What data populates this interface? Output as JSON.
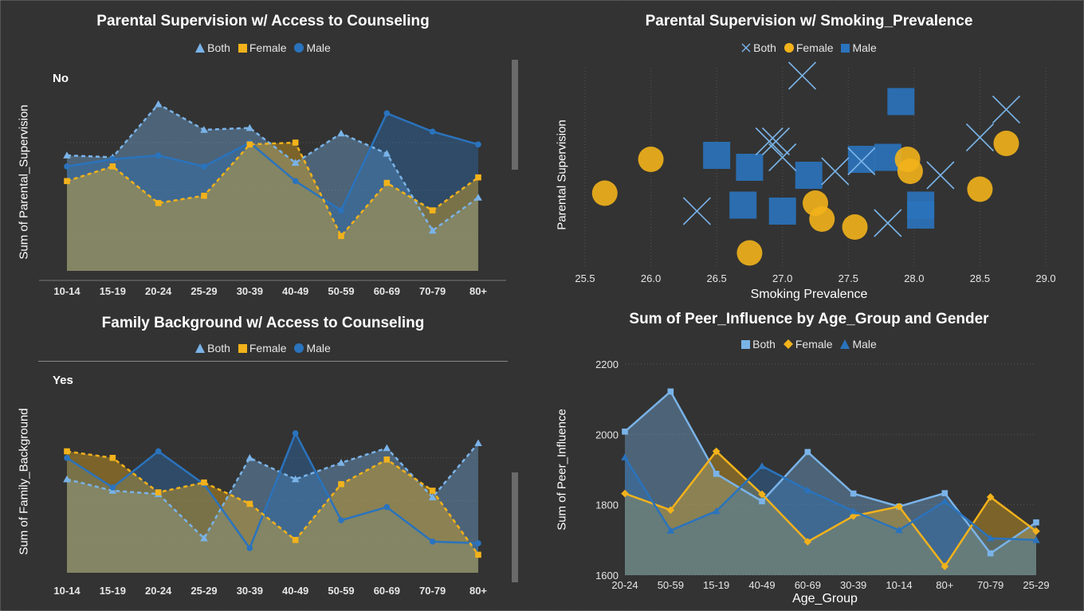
{
  "colors": {
    "both": "#7ab3e8",
    "female": "#f2b21b",
    "male": "#2a73bd",
    "bg": "#333333",
    "grid": "#555555"
  },
  "legends": {
    "both": "Both",
    "female": "Female",
    "male": "Male"
  },
  "chart_data": [
    {
      "id": "tl",
      "type": "area",
      "title": "Parental Supervision w/ Access to Counseling",
      "subtitle": "No",
      "ylabel": "Sum of Parental_Supervision",
      "xlabel": "",
      "categories": [
        "10-14",
        "15-19",
        "20-24",
        "25-29",
        "30-39",
        "40-49",
        "50-59",
        "60-69",
        "70-79",
        "80+"
      ],
      "ylim": [
        0,
        100
      ],
      "series": [
        {
          "name": "Both",
          "values": [
            63,
            62,
            91,
            77,
            78,
            59,
            75,
            64,
            22,
            40
          ]
        },
        {
          "name": "Female",
          "values": [
            49,
            57,
            37,
            41,
            69,
            70,
            19,
            48,
            33,
            51
          ]
        },
        {
          "name": "Male",
          "values": [
            57,
            61,
            63,
            57,
            70,
            49,
            33,
            86,
            76,
            69
          ]
        }
      ]
    },
    {
      "id": "bl",
      "type": "area",
      "title": "Family Background w/ Access to Counseling",
      "subtitle": "Yes",
      "ylabel": "Sum of Family_Background",
      "xlabel": "",
      "categories": [
        "10-14",
        "15-19",
        "20-24",
        "25-29",
        "30-39",
        "40-49",
        "50-59",
        "60-69",
        "70-79",
        "80+"
      ],
      "ylim": [
        0,
        100
      ],
      "series": [
        {
          "name": "Both",
          "values": [
            57,
            50,
            48,
            21,
            70,
            57,
            67,
            76,
            46,
            79
          ]
        },
        {
          "name": "Female",
          "values": [
            74,
            70,
            49,
            55,
            42,
            20,
            54,
            69,
            50,
            11
          ]
        },
        {
          "name": "Male",
          "values": [
            70,
            52,
            74,
            54,
            15,
            85,
            32,
            40,
            19,
            18
          ]
        }
      ]
    },
    {
      "id": "tr",
      "type": "scatter",
      "title": "Parental Supervision w/ Smoking_Prevalence",
      "xlabel": "Smoking Prevalence",
      "ylabel": "Parental Supervision",
      "xticks": [
        "25.5",
        "26.0",
        "26.5",
        "27.0",
        "27.5",
        "28.0",
        "28.5",
        "29.0"
      ],
      "xlim": [
        25.5,
        29.0
      ],
      "ylim": [
        0,
        100
      ],
      "series": [
        {
          "name": "Both",
          "points": [
            [
              26.95,
              63
            ],
            [
              26.9,
              63
            ],
            [
              27.0,
              55
            ],
            [
              27.15,
              96
            ],
            [
              27.4,
              48
            ],
            [
              27.6,
              53
            ],
            [
              27.8,
              22
            ],
            [
              26.35,
              28
            ],
            [
              28.2,
              46
            ],
            [
              28.5,
              65
            ],
            [
              28.7,
              79
            ]
          ]
        },
        {
          "name": "Female",
          "points": [
            [
              25.65,
              37
            ],
            [
              26.0,
              54
            ],
            [
              26.75,
              7
            ],
            [
              27.25,
              32
            ],
            [
              27.3,
              24
            ],
            [
              27.55,
              20
            ],
            [
              27.95,
              54
            ],
            [
              27.97,
              48
            ],
            [
              28.5,
              39
            ],
            [
              28.7,
              62
            ]
          ]
        },
        {
          "name": "Male",
          "points": [
            [
              26.5,
              56
            ],
            [
              26.75,
              50
            ],
            [
              27.0,
              28
            ],
            [
              27.2,
              46
            ],
            [
              27.6,
              54
            ],
            [
              27.8,
              55
            ],
            [
              27.9,
              83
            ],
            [
              26.7,
              31
            ],
            [
              28.05,
              31
            ],
            [
              28.05,
              26
            ]
          ]
        }
      ]
    },
    {
      "id": "br",
      "type": "area",
      "title": "Sum of Peer_Influence by Age_Group and Gender",
      "xlabel": "Age_Group",
      "ylabel": "Sum of Peer_Influence",
      "categories": [
        "20-24",
        "50-59",
        "15-19",
        "40-49",
        "60-69",
        "30-39",
        "10-14",
        "80+",
        "70-79",
        "25-29"
      ],
      "yticks": [
        "1600",
        "1800",
        "2000",
        "2200"
      ],
      "ylim": [
        1600,
        2200
      ],
      "series": [
        {
          "name": "Both",
          "values": [
            2008,
            2122,
            1888,
            1810,
            1950,
            1832,
            1795,
            1833,
            1662,
            1750
          ]
        },
        {
          "name": "Female",
          "values": [
            1832,
            1785,
            1952,
            1830,
            1695,
            1768,
            1795,
            1625,
            1822,
            1725
          ]
        },
        {
          "name": "Male",
          "values": [
            1935,
            1727,
            1782,
            1910,
            1842,
            1782,
            1728,
            1810,
            1705,
            1700
          ]
        }
      ]
    }
  ]
}
